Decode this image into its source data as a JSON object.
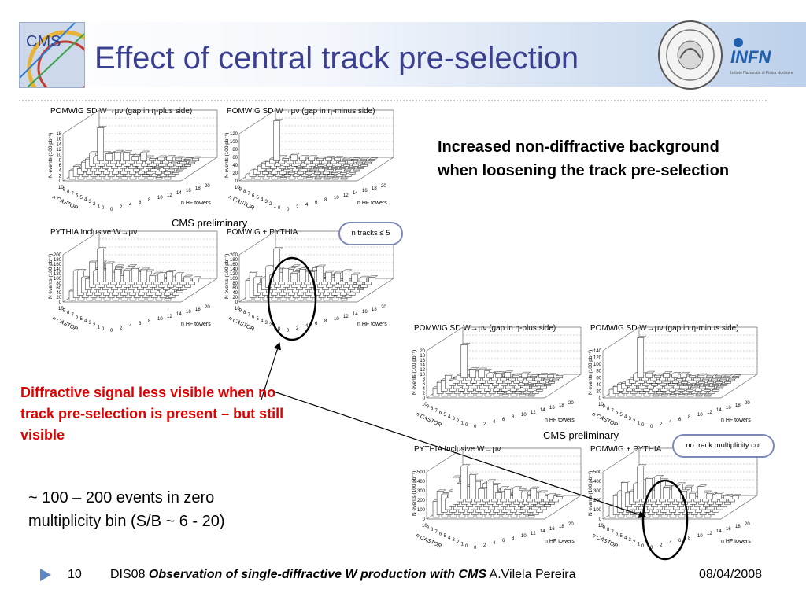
{
  "title": "Effect of central track pre-selection",
  "bullets": {
    "increased": "Increased non-diffractive background when loosening the track pre-selection",
    "diffractive": "Diffractive signal less visible when no track pre-selection is present – but still visible",
    "events": "~ 100 – 200 events in zero multiplicity bin (S/B ~ 6 - 20)"
  },
  "figure_top": {
    "cms_label": "CMS preliminary",
    "callout": "n tracks ≤ 5",
    "panels": [
      {
        "title": "POMWIG SD W→μν (gap in η-plus side)",
        "y_ticks": [
          "0",
          "2",
          "4",
          "6",
          "8",
          "10",
          "12",
          "14",
          "16",
          "18"
        ]
      },
      {
        "title": "POMWIG SD W→μν (gap in η-minus side)",
        "y_ticks": [
          "0",
          "20",
          "40",
          "60",
          "80",
          "100",
          "120"
        ]
      },
      {
        "title": "PYTHIA Inclusive W→μν",
        "y_ticks": [
          "0",
          "20",
          "40",
          "60",
          "80",
          "100",
          "120",
          "140",
          "160",
          "180",
          "200"
        ]
      },
      {
        "title": "POMWIG + PYTHIA",
        "y_ticks": [
          "0",
          "20",
          "40",
          "60",
          "80",
          "100",
          "120",
          "140",
          "160",
          "180",
          "200"
        ]
      }
    ]
  },
  "figure_bottom": {
    "cms_label": "CMS preliminary",
    "callout": "no track multiplicity cut",
    "panels": [
      {
        "title": "POMWIG SD W→μν (gap in η-plus side)",
        "y_ticks": [
          "0",
          "2",
          "4",
          "6",
          "8",
          "10",
          "12",
          "14",
          "16",
          "18",
          "20"
        ]
      },
      {
        "title": "POMWIG SD W→μν (gap in η-minus side)",
        "y_ticks": [
          "0",
          "20",
          "40",
          "60",
          "80",
          "100",
          "120",
          "140"
        ]
      },
      {
        "title": "PYTHIA Inclusive W→μν",
        "y_ticks": [
          "0",
          "100",
          "200",
          "300",
          "400",
          "500"
        ]
      },
      {
        "title": "POMWIG + PYTHIA",
        "y_ticks": [
          "0",
          "100",
          "200",
          "300",
          "400",
          "500"
        ]
      }
    ]
  },
  "axes": {
    "ylabel": "N events (100 pb⁻¹)",
    "castor_label": "n CASTOR",
    "hf_label": "n HF towers",
    "castor_ticks": [
      "10",
      "9",
      "8",
      "7",
      "6",
      "5",
      "4",
      "3",
      "2",
      "1",
      "0"
    ],
    "hf_ticks": [
      "0",
      "2",
      "4",
      "6",
      "8",
      "10",
      "12",
      "14",
      "16",
      "18",
      "20"
    ]
  },
  "footer": {
    "slide_number": "10",
    "event": "DIS08",
    "talk_title": "Observation of single-diffractive W production with CMS",
    "author": "A.Vilela Pereira",
    "date": "08/04/2008"
  },
  "logos": {
    "cms": "CMS",
    "infn": "INFN",
    "infn_sub": "Istituto Nazionale di Fisica Nucleare"
  },
  "colors": {
    "title": "#3a3f8f",
    "highlight": "#e00000",
    "callout_border": "#7e88b8"
  }
}
